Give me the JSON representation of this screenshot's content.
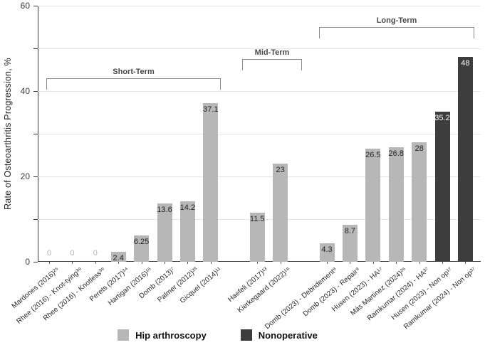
{
  "chart_data": {
    "type": "bar",
    "title": "",
    "ylabel": "Rate of Osteoarthritis Progression, %",
    "ylim": [
      0,
      60
    ],
    "yticks_labeled": [
      0,
      20,
      40,
      60
    ],
    "gridline_step": 10,
    "grid": true,
    "categories": [
      "Mardones (2016)²⁵",
      "Rhee (2016) - Knot-tying³⁹",
      "Rhee (2016) - Knotless³⁹",
      "Perets (2017)³⁴",
      "Hartigan (2016)¹⁵",
      "Domb (2013)⁷",
      "Palmer (2012)³³",
      "Gicquel (2014)¹¹",
      "Haefeli (2017)¹³",
      "Kierkegaard (2022)¹⁸",
      "Domb (2023) - Debridement⁸",
      "Domb (2023) - Repair⁸",
      "Husen (2023) - HA¹⁷",
      "Más Martinez (2024)²⁶",
      "Ramkumar (2024) - HA³⁷",
      "Husen (2023) - Non op¹⁷",
      "Ramkumar (2024) - Non op³⁷"
    ],
    "values": [
      0,
      0,
      0,
      2.4,
      6.25,
      13.6,
      14.2,
      37.1,
      11.5,
      23,
      4.3,
      8.7,
      26.5,
      26.8,
      28,
      35.2,
      48
    ],
    "value_labels": [
      "0",
      "0",
      "0",
      "2.4",
      "6.25",
      "13.6",
      "14.2",
      "37.1",
      "11.5",
      "23",
      "4.3",
      "8.7",
      "26.5",
      "26.8",
      "28",
      "35.2",
      "48"
    ],
    "series_key": [
      "hip",
      "hip",
      "hip",
      "hip",
      "hip",
      "hip",
      "hip",
      "hip",
      "hip",
      "hip",
      "hip",
      "hip",
      "hip",
      "hip",
      "hip",
      "nonop",
      "nonop"
    ],
    "groups": [
      {
        "label": "Short-Term",
        "start": 0,
        "count": 8
      },
      {
        "label": "Mid-Term",
        "start": 8,
        "count": 2
      },
      {
        "label": "Long-Term",
        "start": 10,
        "count": 7
      }
    ],
    "colors": {
      "hip": "#b7b7b7",
      "nonop": "#3d3d3d",
      "value_label_on_light": "#1f1f1f",
      "value_label_on_dark": "#ffffff",
      "zero_label": "#b3b3b3",
      "gridline": "#e4e4e4",
      "axis": "#3a3a3a",
      "bracket": "#8c8c8c"
    },
    "legend": [
      {
        "key": "hip",
        "label": "Hip arthroscopy",
        "color": "#b7b7b7"
      },
      {
        "key": "nonop",
        "label": "Nonoperative",
        "color": "#3d3d3d"
      }
    ],
    "legend_position": "bottom-center"
  }
}
